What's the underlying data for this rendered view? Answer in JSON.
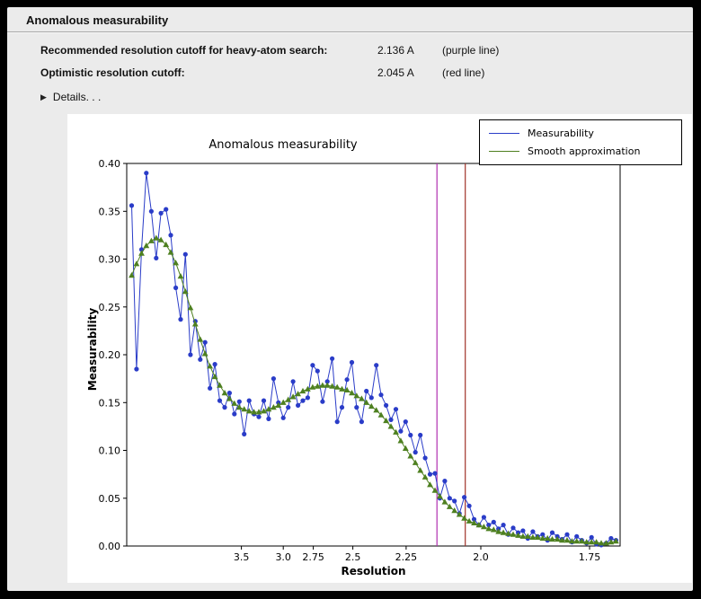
{
  "window": {
    "title": "Anomalous measurability"
  },
  "header": {
    "rows": [
      {
        "label": "Recommended resolution cutoff for heavy-atom search:",
        "value": "2.136 A",
        "note": "(purple line)"
      },
      {
        "label": "Optimistic resolution cutoff:",
        "value": "2.045 A",
        "note": "(red line)"
      }
    ],
    "details_label": "Details. . .",
    "details_icon": "disclosure-triangle-right",
    "details_glyph": "▶"
  },
  "chart_data": {
    "type": "line",
    "title": "Anomalous measurability",
    "xlabel": "Resolution",
    "ylabel": "Measurability",
    "grid": false,
    "x_axis": {
      "scale": "1/d^2",
      "unit": "Angstrom",
      "tick_values_d": [
        3.5,
        3.0,
        2.75,
        2.5,
        2.25,
        2.0,
        1.75
      ],
      "tick_labels": [
        "3.5",
        "3.0",
        "2.75",
        "2.5",
        "2.25",
        "2.0",
        "1.75"
      ],
      "range_s": [
        0.001,
        0.348
      ]
    },
    "y_axis": {
      "range": [
        0,
        0.4
      ],
      "ticks": [
        0,
        0.05,
        0.1,
        0.15,
        0.2,
        0.25,
        0.3,
        0.35,
        0.4
      ],
      "tick_labels": [
        "0.00",
        "0.05",
        "0.10",
        "0.15",
        "0.20",
        "0.25",
        "0.30",
        "0.35",
        "0.40"
      ]
    },
    "vlines": [
      {
        "label": "purple line",
        "resolution": 2.136,
        "s": 0.2192,
        "color": "#b02fb0"
      },
      {
        "label": "red line",
        "resolution": 2.045,
        "s": 0.2391,
        "color": "#a03328"
      }
    ],
    "legend": {
      "position": "upper right"
    },
    "x_s": [
      0.0045,
      0.0079,
      0.0114,
      0.0148,
      0.0183,
      0.0217,
      0.0251,
      0.0286,
      0.032,
      0.0355,
      0.0389,
      0.0423,
      0.0458,
      0.0492,
      0.0527,
      0.0561,
      0.0595,
      0.063,
      0.0664,
      0.0699,
      0.0733,
      0.0767,
      0.0802,
      0.0836,
      0.0871,
      0.0905,
      0.0939,
      0.0974,
      0.1008,
      0.1043,
      0.1077,
      0.1111,
      0.1146,
      0.118,
      0.1215,
      0.1249,
      0.1283,
      0.1318,
      0.1352,
      0.1387,
      0.1421,
      0.1455,
      0.149,
      0.1524,
      0.1559,
      0.1593,
      0.1627,
      0.1662,
      0.1696,
      0.1731,
      0.1765,
      0.1799,
      0.1834,
      0.1868,
      0.1903,
      0.1937,
      0.1971,
      0.2006,
      0.204,
      0.2075,
      0.2109,
      0.2143,
      0.2178,
      0.2212,
      0.2247,
      0.2281,
      0.2315,
      0.235,
      0.2384,
      0.2419,
      0.2453,
      0.2487,
      0.2522,
      0.2556,
      0.2591,
      0.2625,
      0.2659,
      0.2694,
      0.2728,
      0.2763,
      0.2797,
      0.2831,
      0.2866,
      0.29,
      0.2935,
      0.2969,
      0.3003,
      0.3038,
      0.3072,
      0.3107,
      0.3141,
      0.3175,
      0.321,
      0.3244,
      0.3279,
      0.3313,
      0.3347,
      0.3382,
      0.3416,
      0.3451
    ],
    "series": [
      {
        "name": "Measurability",
        "color": "#2a3cc8",
        "marker": "circle",
        "values": [
          0.356,
          0.185,
          0.31,
          0.39,
          0.35,
          0.301,
          0.348,
          0.352,
          0.325,
          0.27,
          0.237,
          0.305,
          0.2,
          0.235,
          0.195,
          0.213,
          0.165,
          0.19,
          0.152,
          0.145,
          0.16,
          0.138,
          0.151,
          0.117,
          0.152,
          0.138,
          0.135,
          0.152,
          0.133,
          0.175,
          0.15,
          0.134,
          0.145,
          0.172,
          0.147,
          0.152,
          0.155,
          0.189,
          0.183,
          0.151,
          0.172,
          0.196,
          0.13,
          0.145,
          0.174,
          0.192,
          0.145,
          0.13,
          0.162,
          0.155,
          0.189,
          0.158,
          0.147,
          0.132,
          0.143,
          0.12,
          0.13,
          0.116,
          0.098,
          0.116,
          0.092,
          0.075,
          0.076,
          0.05,
          0.068,
          0.05,
          0.047,
          0.034,
          0.051,
          0.042,
          0.028,
          0.022,
          0.03,
          0.022,
          0.025,
          0.018,
          0.022,
          0.012,
          0.019,
          0.014,
          0.016,
          0.008,
          0.015,
          0.01,
          0.012,
          0.006,
          0.014,
          0.01,
          0.007,
          0.012,
          0.004,
          0.01,
          0.006,
          0.003,
          0.009,
          0.002,
          0.001,
          0.003,
          0.008,
          0.006
        ]
      },
      {
        "name": "Smooth approximation",
        "color": "#4e8020",
        "marker": "triangle",
        "values": [
          0.283,
          0.295,
          0.306,
          0.314,
          0.319,
          0.322,
          0.32,
          0.315,
          0.307,
          0.296,
          0.282,
          0.266,
          0.249,
          0.232,
          0.216,
          0.201,
          0.188,
          0.177,
          0.168,
          0.16,
          0.154,
          0.149,
          0.145,
          0.143,
          0.141,
          0.14,
          0.14,
          0.141,
          0.143,
          0.145,
          0.147,
          0.15,
          0.153,
          0.156,
          0.159,
          0.162,
          0.164,
          0.166,
          0.167,
          0.168,
          0.168,
          0.167,
          0.166,
          0.164,
          0.163,
          0.16,
          0.157,
          0.154,
          0.15,
          0.146,
          0.142,
          0.137,
          0.131,
          0.125,
          0.119,
          0.11,
          0.102,
          0.094,
          0.087,
          0.079,
          0.072,
          0.064,
          0.058,
          0.052,
          0.046,
          0.041,
          0.037,
          0.033,
          0.029,
          0.026,
          0.024,
          0.022,
          0.02,
          0.018,
          0.017,
          0.015,
          0.014,
          0.013,
          0.012,
          0.011,
          0.01,
          0.01,
          0.009,
          0.009,
          0.008,
          0.008,
          0.007,
          0.007,
          0.006,
          0.006,
          0.005,
          0.005,
          0.005,
          0.004,
          0.004,
          0.004,
          0.003,
          0.003,
          0.004,
          0.005
        ]
      }
    ]
  }
}
